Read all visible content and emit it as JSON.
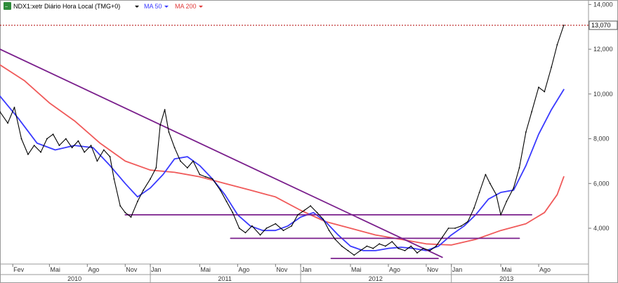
{
  "legend": {
    "symbol_label": "NDX1:xetr Diário Hora Local (TMG+0)",
    "ma50_label": "MA 50",
    "ma200_label": "MA 200",
    "colors": {
      "ma50": "#3a3aff",
      "ma200": "#f05a5a",
      "trend": "#7a1f8c",
      "price": "#000000",
      "ref": "#b00000"
    }
  },
  "chart_data": {
    "type": "line",
    "title": "",
    "xlabel": "",
    "ylabel": "",
    "ylim": [
      2400,
      14200
    ],
    "x_range": [
      "2010-01-01",
      "2013-11-30"
    ],
    "y_ticks": [
      "4,000",
      "6,000",
      "8,000",
      "10,000",
      "12,000",
      "14,000"
    ],
    "y_tick_values": [
      4000,
      6000,
      8000,
      10000,
      12000,
      14000
    ],
    "x_month_ticks": [
      {
        "label": "Fev",
        "date": "2010-02-01"
      },
      {
        "label": "Mai",
        "date": "2010-05-01"
      },
      {
        "label": "Ago",
        "date": "2010-08-01"
      },
      {
        "label": "Nov",
        "date": "2010-11-01"
      },
      {
        "label": "Jan",
        "date": "2011-01-01"
      },
      {
        "label": "Mai",
        "date": "2011-05-01"
      },
      {
        "label": "Ago",
        "date": "2011-08-01"
      },
      {
        "label": "Nov",
        "date": "2011-11-01"
      },
      {
        "label": "Jan",
        "date": "2012-01-01"
      },
      {
        "label": "Mai",
        "date": "2012-05-01"
      },
      {
        "label": "Ago",
        "date": "2012-08-01"
      },
      {
        "label": "Nov",
        "date": "2012-11-01"
      },
      {
        "label": "Jan",
        "date": "2013-01-01"
      },
      {
        "label": "Mai",
        "date": "2013-05-01"
      },
      {
        "label": "Ago",
        "date": "2013-08-01"
      }
    ],
    "x_year_ticks": [
      {
        "label": "2010",
        "date": "2010-07-01"
      },
      {
        "label": "2011",
        "date": "2011-07-01"
      },
      {
        "label": "2012",
        "date": "2012-07-01"
      },
      {
        "label": "2013",
        "date": "2013-05-15"
      }
    ],
    "year_separators": [
      "2011-01-01",
      "2012-01-01",
      "2013-01-01"
    ],
    "current_price": {
      "label": "13,070",
      "value": 13070
    },
    "grid": false,
    "legend_position": "top-left",
    "series": [
      {
        "name": "NDX1:xetr",
        "style": "price",
        "points": [
          [
            "2010-01-01",
            9200
          ],
          [
            "2010-01-20",
            8700
          ],
          [
            "2010-02-05",
            9400
          ],
          [
            "2010-02-22",
            8000
          ],
          [
            "2010-03-10",
            7300
          ],
          [
            "2010-03-25",
            7700
          ],
          [
            "2010-04-10",
            7400
          ],
          [
            "2010-04-25",
            8000
          ],
          [
            "2010-05-10",
            8200
          ],
          [
            "2010-05-25",
            7700
          ],
          [
            "2010-06-10",
            8000
          ],
          [
            "2010-06-25",
            7600
          ],
          [
            "2010-07-10",
            7900
          ],
          [
            "2010-07-25",
            7400
          ],
          [
            "2010-08-10",
            7700
          ],
          [
            "2010-08-25",
            7000
          ],
          [
            "2010-09-10",
            7500
          ],
          [
            "2010-09-25",
            7200
          ],
          [
            "2010-10-05",
            6200
          ],
          [
            "2010-10-20",
            5000
          ],
          [
            "2010-11-01",
            4700
          ],
          [
            "2010-11-15",
            4500
          ],
          [
            "2010-12-01",
            5200
          ],
          [
            "2010-12-15",
            5700
          ],
          [
            "2011-01-01",
            6200
          ],
          [
            "2011-01-15",
            6700
          ],
          [
            "2011-01-25",
            8600
          ],
          [
            "2011-02-05",
            9300
          ],
          [
            "2011-02-15",
            8300
          ],
          [
            "2011-03-01",
            7600
          ],
          [
            "2011-03-15",
            7000
          ],
          [
            "2011-04-01",
            6700
          ],
          [
            "2011-04-15",
            7000
          ],
          [
            "2011-05-01",
            6400
          ],
          [
            "2011-05-15",
            6300
          ],
          [
            "2011-06-01",
            6200
          ],
          [
            "2011-06-20",
            5700
          ],
          [
            "2011-07-05",
            5200
          ],
          [
            "2011-07-20",
            4700
          ],
          [
            "2011-08-05",
            4000
          ],
          [
            "2011-08-20",
            3800
          ],
          [
            "2011-09-05",
            4100
          ],
          [
            "2011-09-25",
            3700
          ],
          [
            "2011-10-10",
            4000
          ],
          [
            "2011-11-01",
            4200
          ],
          [
            "2011-11-20",
            3900
          ],
          [
            "2011-12-10",
            4100
          ],
          [
            "2011-12-25",
            4600
          ],
          [
            "2012-01-10",
            4800
          ],
          [
            "2012-01-25",
            5000
          ],
          [
            "2012-02-10",
            4700
          ],
          [
            "2012-02-25",
            4400
          ],
          [
            "2012-03-10",
            3900
          ],
          [
            "2012-03-25",
            3500
          ],
          [
            "2012-04-10",
            3200
          ],
          [
            "2012-04-25",
            3000
          ],
          [
            "2012-05-10",
            2800
          ],
          [
            "2012-05-25",
            3000
          ],
          [
            "2012-06-10",
            3200
          ],
          [
            "2012-06-25",
            3100
          ],
          [
            "2012-07-10",
            3300
          ],
          [
            "2012-07-25",
            3200
          ],
          [
            "2012-08-10",
            3400
          ],
          [
            "2012-08-25",
            3100
          ],
          [
            "2012-09-10",
            3000
          ],
          [
            "2012-09-25",
            3200
          ],
          [
            "2012-10-10",
            2900
          ],
          [
            "2012-10-25",
            3100
          ],
          [
            "2012-11-10",
            3000
          ],
          [
            "2012-11-25",
            3200
          ],
          [
            "2012-12-10",
            3600
          ],
          [
            "2012-12-25",
            4000
          ],
          [
            "2013-01-10",
            4000
          ],
          [
            "2013-01-25",
            4100
          ],
          [
            "2013-02-10",
            4300
          ],
          [
            "2013-02-25",
            4900
          ],
          [
            "2013-03-10",
            5600
          ],
          [
            "2013-03-25",
            6400
          ],
          [
            "2013-04-05",
            6000
          ],
          [
            "2013-04-20",
            5500
          ],
          [
            "2013-05-01",
            4600
          ],
          [
            "2013-05-15",
            5200
          ],
          [
            "2013-06-01",
            5800
          ],
          [
            "2013-06-15",
            6700
          ],
          [
            "2013-07-01",
            8300
          ],
          [
            "2013-07-15",
            9200
          ],
          [
            "2013-08-01",
            10300
          ],
          [
            "2013-08-15",
            10100
          ],
          [
            "2013-09-01",
            11200
          ],
          [
            "2013-09-15",
            12200
          ],
          [
            "2013-10-01",
            13070
          ]
        ]
      },
      {
        "name": "MA 50",
        "style": "ma50",
        "points": [
          [
            "2010-01-01",
            9900
          ],
          [
            "2010-02-15",
            8900
          ],
          [
            "2010-04-01",
            7800
          ],
          [
            "2010-05-15",
            7500
          ],
          [
            "2010-07-01",
            7700
          ],
          [
            "2010-08-15",
            7600
          ],
          [
            "2010-09-25",
            6800
          ],
          [
            "2010-11-01",
            6000
          ],
          [
            "2010-12-01",
            5400
          ],
          [
            "2011-01-01",
            5800
          ],
          [
            "2011-02-01",
            6400
          ],
          [
            "2011-03-01",
            7100
          ],
          [
            "2011-04-01",
            7200
          ],
          [
            "2011-05-01",
            6800
          ],
          [
            "2011-06-01",
            6200
          ],
          [
            "2011-07-01",
            5500
          ],
          [
            "2011-08-01",
            4600
          ],
          [
            "2011-09-01",
            4100
          ],
          [
            "2011-10-01",
            3900
          ],
          [
            "2011-11-01",
            3900
          ],
          [
            "2011-12-01",
            4100
          ],
          [
            "2012-01-01",
            4500
          ],
          [
            "2012-02-01",
            4700
          ],
          [
            "2012-03-01",
            4300
          ],
          [
            "2012-04-01",
            3700
          ],
          [
            "2012-05-01",
            3200
          ],
          [
            "2012-06-01",
            3000
          ],
          [
            "2012-07-01",
            3000
          ],
          [
            "2012-08-01",
            3100
          ],
          [
            "2012-09-01",
            3150
          ],
          [
            "2012-10-01",
            3100
          ],
          [
            "2012-11-01",
            3000
          ],
          [
            "2012-12-01",
            3200
          ],
          [
            "2013-01-01",
            3700
          ],
          [
            "2013-02-01",
            4100
          ],
          [
            "2013-03-01",
            4600
          ],
          [
            "2013-04-01",
            5300
          ],
          [
            "2013-05-01",
            5600
          ],
          [
            "2013-06-01",
            5700
          ],
          [
            "2013-07-01",
            6800
          ],
          [
            "2013-08-01",
            8200
          ],
          [
            "2013-09-01",
            9300
          ],
          [
            "2013-10-01",
            10200
          ]
        ]
      },
      {
        "name": "MA 200",
        "style": "ma200",
        "points": [
          [
            "2010-01-01",
            11300
          ],
          [
            "2010-03-01",
            10600
          ],
          [
            "2010-05-01",
            9600
          ],
          [
            "2010-07-01",
            8800
          ],
          [
            "2010-09-01",
            7800
          ],
          [
            "2010-11-01",
            7000
          ],
          [
            "2011-01-01",
            6600
          ],
          [
            "2011-03-01",
            6500
          ],
          [
            "2011-05-01",
            6300
          ],
          [
            "2011-07-01",
            6000
          ],
          [
            "2011-09-01",
            5700
          ],
          [
            "2011-11-01",
            5400
          ],
          [
            "2012-01-01",
            4800
          ],
          [
            "2012-03-01",
            4300
          ],
          [
            "2012-05-01",
            4000
          ],
          [
            "2012-07-01",
            3700
          ],
          [
            "2012-09-01",
            3500
          ],
          [
            "2012-11-01",
            3300
          ],
          [
            "2013-01-01",
            3250
          ],
          [
            "2013-03-01",
            3500
          ],
          [
            "2013-05-01",
            3900
          ],
          [
            "2013-07-01",
            4200
          ],
          [
            "2013-08-15",
            4700
          ],
          [
            "2013-09-15",
            5500
          ],
          [
            "2013-10-01",
            6300
          ]
        ]
      },
      {
        "name": "",
        "style": "trend",
        "points": [
          [
            "2010-01-01",
            12000
          ],
          [
            "2012-12-10",
            2700
          ]
        ]
      },
      {
        "name": "",
        "style": "trend",
        "points": [
          [
            "2010-11-01",
            4600
          ],
          [
            "2013-07-15",
            4600
          ]
        ]
      },
      {
        "name": "",
        "style": "trend",
        "points": [
          [
            "2011-07-15",
            3550
          ],
          [
            "2013-06-15",
            3550
          ]
        ]
      },
      {
        "name": "",
        "style": "trend",
        "points": [
          [
            "2012-03-15",
            2650
          ],
          [
            "2012-11-30",
            2650
          ]
        ]
      }
    ]
  }
}
